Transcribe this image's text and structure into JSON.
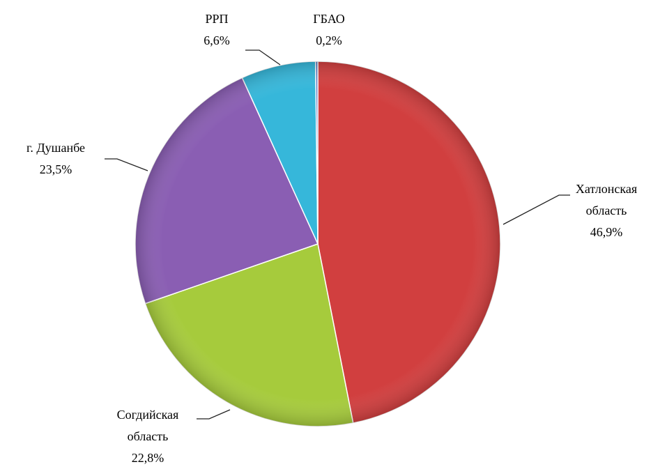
{
  "chart_data": {
    "type": "pie",
    "categories": [
      "Хатлонская область",
      "Согдийская область",
      "г. Душанбе",
      "РРП",
      "ГБАО"
    ],
    "values": [
      46.9,
      22.8,
      23.5,
      6.6,
      0.2
    ],
    "value_labels": [
      "46,9%",
      "22,8%",
      "23,5%",
      "6,6%",
      "0,2%"
    ],
    "colors": [
      "#d13f3f",
      "#a6cb3c",
      "#8a5eb3",
      "#36b7da",
      "#4f6fbd"
    ]
  }
}
